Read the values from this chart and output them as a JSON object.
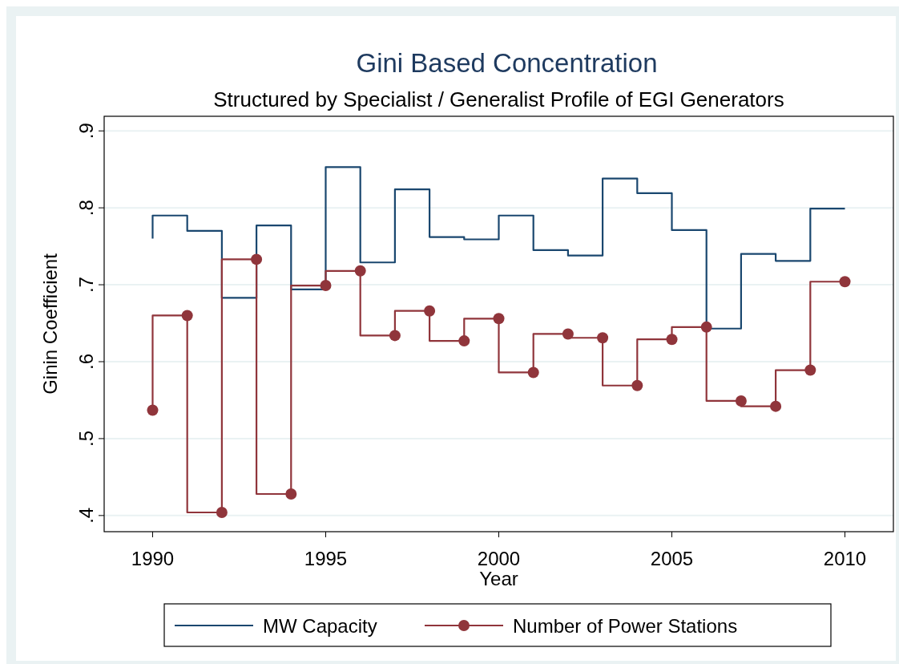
{
  "chart_data": {
    "type": "step",
    "title": "Gini Based Concentration",
    "subtitle": "Structured by Specialist / Generalist Profile of EGI Generators",
    "xlabel": "Year",
    "ylabel": "Ginin Coefficient",
    "x": [
      1990,
      1991,
      1992,
      1993,
      1994,
      1995,
      1996,
      1997,
      1998,
      1999,
      2000,
      2001,
      2002,
      2003,
      2004,
      2005,
      2006,
      2007,
      2008,
      2009,
      2010
    ],
    "series": [
      {
        "name": "MW Capacity",
        "color": "#1a476f",
        "marker": "none",
        "values": [
          0.76,
          0.79,
          0.77,
          0.683,
          0.777,
          0.694,
          0.853,
          0.729,
          0.824,
          0.762,
          0.759,
          0.79,
          0.745,
          0.738,
          0.838,
          0.819,
          0.771,
          0.643,
          0.74,
          0.731,
          0.799
        ]
      },
      {
        "name": "Number of Power Stations",
        "color": "#90353b",
        "marker": "circle",
        "values": [
          0.537,
          0.66,
          0.404,
          0.733,
          0.428,
          0.699,
          0.718,
          0.634,
          0.666,
          0.627,
          0.656,
          0.586,
          0.636,
          0.631,
          0.569,
          0.629,
          0.645,
          0.549,
          0.542,
          0.589,
          0.704
        ]
      }
    ],
    "xlim": [
      1988.6,
      2011.4
    ],
    "xticks": [
      1990,
      1995,
      2000,
      2005,
      2010
    ],
    "ylim": [
      0.379,
      0.919
    ],
    "yticks": [
      {
        "value": 0.4,
        "label": ".4"
      },
      {
        "value": 0.5,
        "label": ".5"
      },
      {
        "value": 0.6,
        "label": ".6"
      },
      {
        "value": 0.7,
        "label": ".7"
      },
      {
        "value": 0.8,
        "label": ".8"
      },
      {
        "value": 0.9,
        "label": ".9"
      }
    ],
    "grid": "y",
    "legend": "bottom"
  }
}
